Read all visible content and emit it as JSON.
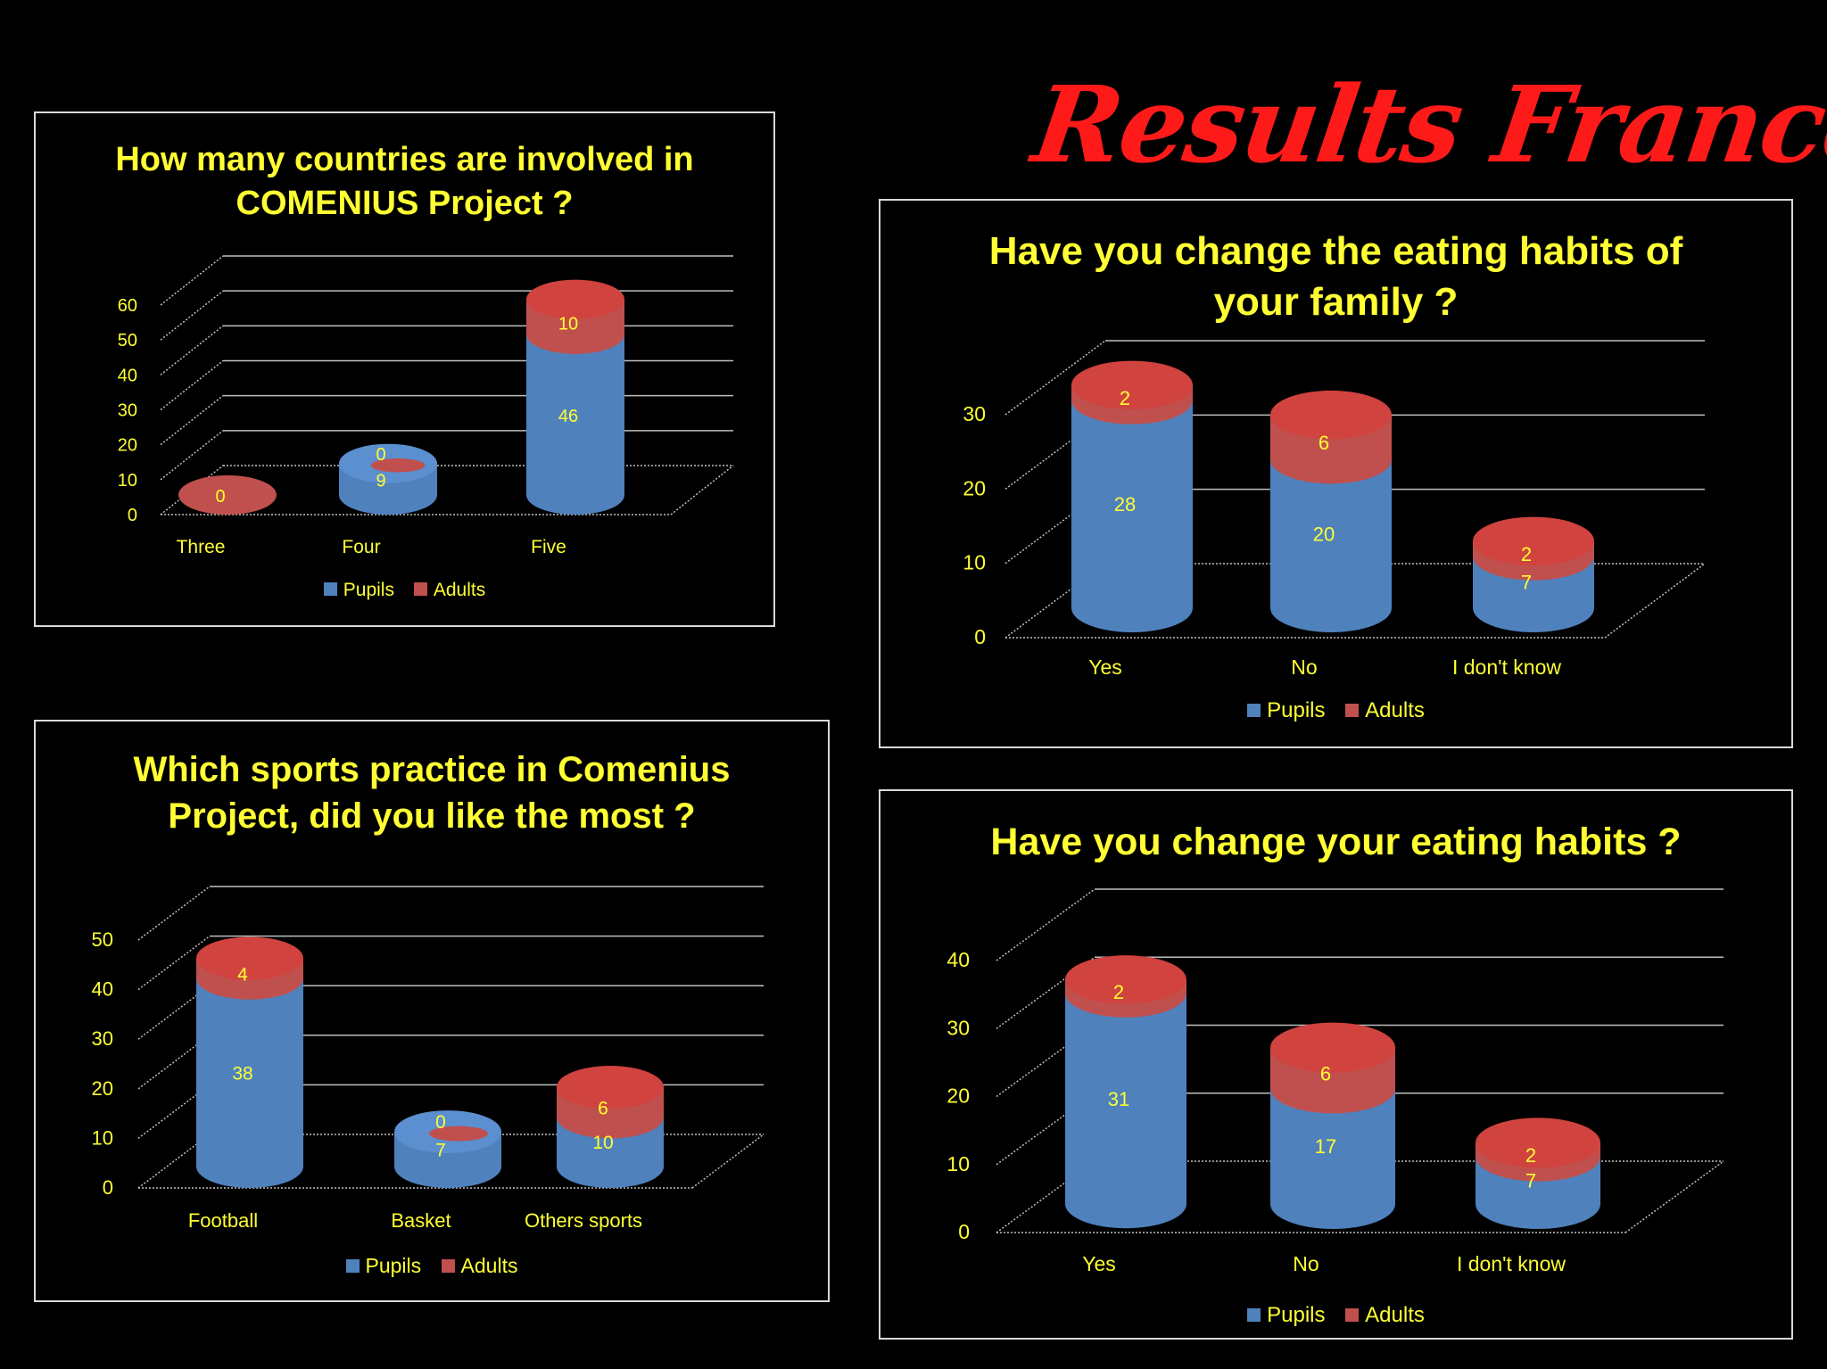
{
  "page": {
    "title": "Results France"
  },
  "chart_data": [
    {
      "id": "countries",
      "type": "bar",
      "stacked": true,
      "style": "3d-cylinder",
      "title_lines": [
        "How many countries are involved in",
        "COMENIUS Project ?"
      ],
      "categories": [
        "Three",
        "Four",
        "Five"
      ],
      "series": [
        {
          "name": "Pupils",
          "values": [
            0,
            9,
            46
          ]
        },
        {
          "name": "Adults",
          "values": [
            0,
            0,
            10
          ]
        }
      ],
      "value_labels": [
        [
          "0",
          ""
        ],
        [
          "9",
          "0"
        ],
        [
          "46",
          "10"
        ]
      ],
      "yticks": [
        0,
        10,
        20,
        30,
        40,
        50,
        60
      ],
      "ylim": [
        0,
        60
      ],
      "legend": [
        "Pupils",
        "Adults"
      ],
      "legend_position": "bottom"
    },
    {
      "id": "family",
      "type": "bar",
      "stacked": true,
      "style": "3d-cylinder",
      "title_lines": [
        "Have you change the eating habits of",
        "your family ?"
      ],
      "categories": [
        "Yes",
        "No",
        "I don't know"
      ],
      "series": [
        {
          "name": "Pupils",
          "values": [
            28,
            20,
            7
          ]
        },
        {
          "name": "Adults",
          "values": [
            2,
            6,
            2
          ]
        }
      ],
      "value_labels": [
        [
          "28",
          "2"
        ],
        [
          "20",
          "6"
        ],
        [
          "7",
          "2"
        ]
      ],
      "yticks": [
        0,
        10,
        20,
        30
      ],
      "ylim": [
        0,
        30
      ],
      "legend": [
        "Pupils",
        "Adults"
      ],
      "legend_position": "bottom"
    },
    {
      "id": "sports",
      "type": "bar",
      "stacked": true,
      "style": "3d-cylinder",
      "title_lines": [
        "Which sports practice in Comenius",
        "Project, did you like the most ?"
      ],
      "categories": [
        "Football",
        "Basket",
        "Others sports"
      ],
      "series": [
        {
          "name": "Pupils",
          "values": [
            38,
            7,
            10
          ]
        },
        {
          "name": "Adults",
          "values": [
            4,
            0,
            6
          ]
        }
      ],
      "value_labels": [
        [
          "38",
          "4"
        ],
        [
          "7",
          "0"
        ],
        [
          "10",
          "6"
        ]
      ],
      "yticks": [
        0,
        10,
        20,
        30,
        40,
        50
      ],
      "ylim": [
        0,
        50
      ],
      "legend": [
        "Pupils",
        "Adults"
      ],
      "legend_position": "bottom"
    },
    {
      "id": "own",
      "type": "bar",
      "stacked": true,
      "style": "3d-cylinder",
      "title_lines": [
        "Have you change your eating habits ?"
      ],
      "categories": [
        "Yes",
        "No",
        "I don't know"
      ],
      "series": [
        {
          "name": "Pupils",
          "values": [
            31,
            17,
            7
          ]
        },
        {
          "name": "Adults",
          "values": [
            2,
            6,
            2
          ]
        }
      ],
      "value_labels": [
        [
          "31",
          "2"
        ],
        [
          "17",
          "6"
        ],
        [
          "7",
          "2"
        ]
      ],
      "yticks": [
        0,
        10,
        20,
        30,
        40
      ],
      "ylim": [
        0,
        40
      ],
      "legend": [
        "Pupils",
        "Adults"
      ],
      "legend_position": "bottom"
    }
  ],
  "colors": {
    "pupils": "#4f81bd",
    "adults": "#c0504d",
    "text": "#ffff33",
    "title": "#ff1a1a"
  }
}
